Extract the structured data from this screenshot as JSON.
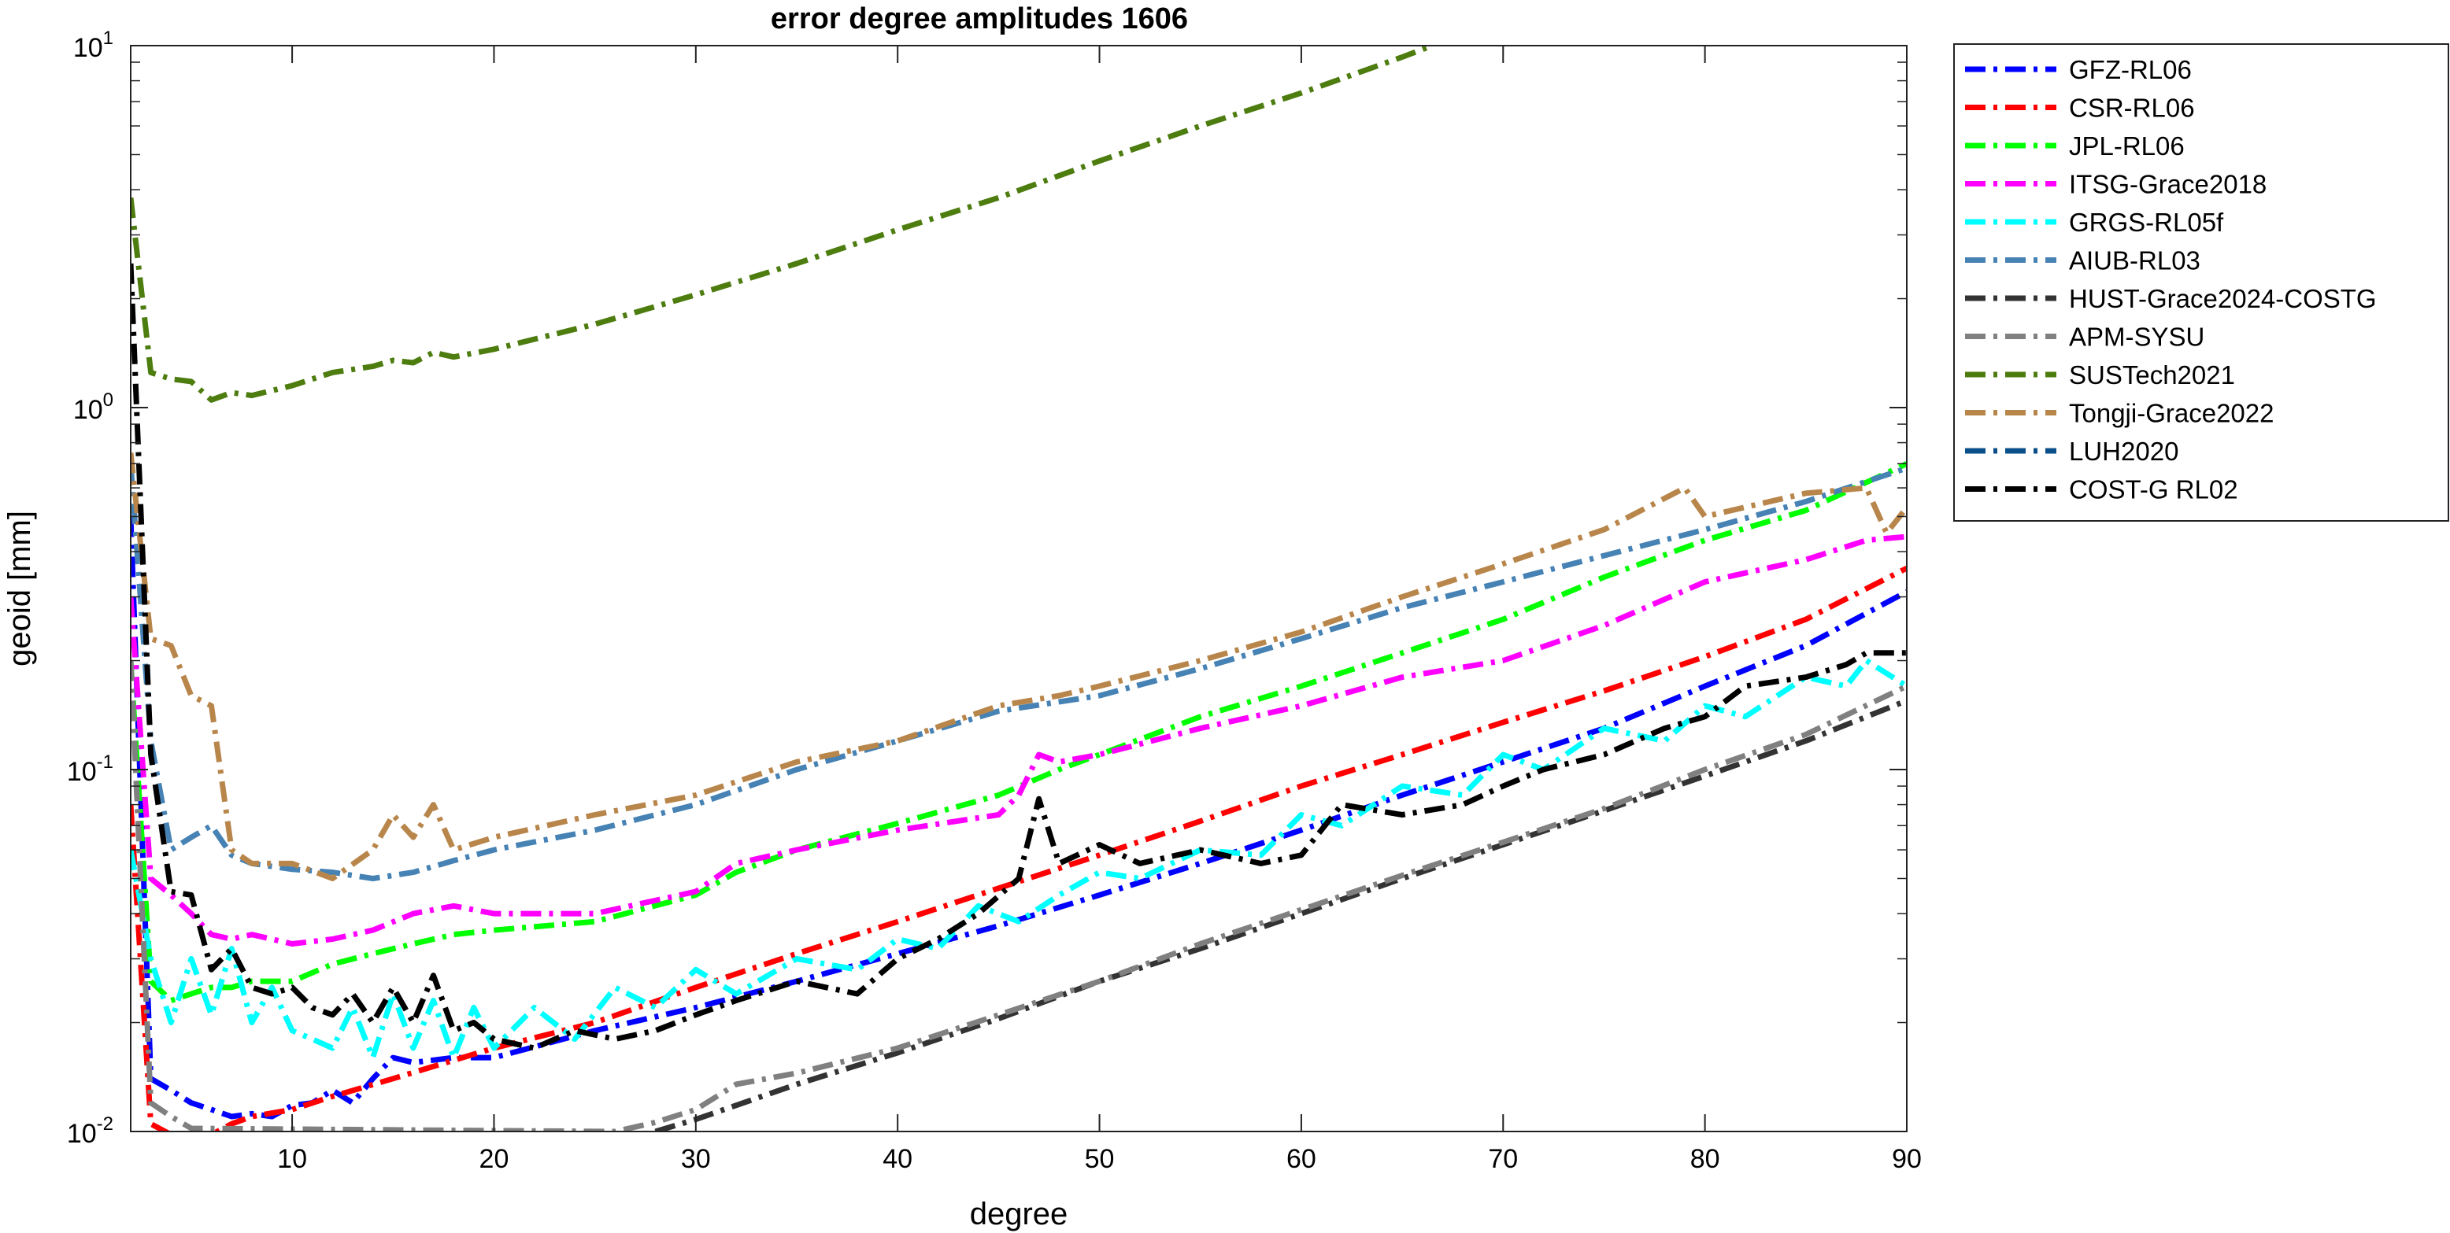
{
  "chart_data": {
    "type": "line",
    "title": "error degree amplitudes 1606",
    "xlabel": "degree",
    "ylabel": "geoid [mm]",
    "xlim": [
      2,
      90
    ],
    "ylim": [
      0.01,
      10
    ],
    "yscale": "log",
    "grid": false,
    "legend_position": "outside-right",
    "x_ticks": [
      10,
      20,
      30,
      40,
      50,
      60,
      70,
      80,
      90
    ],
    "y_major_ticks": [
      {
        "value": 0.01,
        "base": "10",
        "exp": "-2"
      },
      {
        "value": 0.1,
        "base": "10",
        "exp": "-1"
      },
      {
        "value": 1,
        "base": "10",
        "exp": "0"
      },
      {
        "value": 10,
        "base": "10",
        "exp": "1"
      }
    ],
    "series": [
      {
        "name": "GFZ-RL06",
        "color": "#0000ff",
        "dash": "dashdot",
        "x": [
          2,
          3,
          4,
          5,
          6,
          7,
          8,
          9,
          10,
          11,
          12,
          13,
          14,
          15,
          16,
          18,
          20,
          25,
          30,
          35,
          40,
          45,
          50,
          55,
          60,
          65,
          70,
          75,
          80,
          85,
          90
        ],
        "y": [
          0.5,
          0.014,
          0.013,
          0.012,
          0.0115,
          0.011,
          0.0112,
          0.011,
          0.0118,
          0.012,
          0.013,
          0.012,
          0.014,
          0.016,
          0.0155,
          0.016,
          0.016,
          0.019,
          0.022,
          0.026,
          0.031,
          0.037,
          0.045,
          0.055,
          0.068,
          0.085,
          0.105,
          0.13,
          0.17,
          0.22,
          0.31
        ]
      },
      {
        "name": "CSR-RL06",
        "color": "#ff0000",
        "dash": "dashdot",
        "x": [
          2,
          3,
          4,
          5,
          6,
          7,
          8,
          10,
          12,
          15,
          20,
          25,
          30,
          35,
          40,
          45,
          50,
          55,
          60,
          65,
          70,
          75,
          80,
          85,
          90
        ],
        "y": [
          0.08,
          0.0105,
          0.0098,
          0.0095,
          0.0098,
          0.0105,
          0.011,
          0.0115,
          0.0125,
          0.014,
          0.017,
          0.02,
          0.025,
          0.031,
          0.038,
          0.047,
          0.058,
          0.072,
          0.09,
          0.11,
          0.135,
          0.165,
          0.205,
          0.26,
          0.36
        ]
      },
      {
        "name": "JPL-RL06",
        "color": "#00ff00",
        "dash": "dashdot",
        "x": [
          2,
          3,
          4,
          5,
          6,
          7,
          8,
          10,
          12,
          14,
          16,
          18,
          20,
          25,
          30,
          32,
          35,
          40,
          45,
          48,
          50,
          55,
          60,
          65,
          70,
          75,
          80,
          85,
          90
        ],
        "y": [
          0.2,
          0.026,
          0.023,
          0.024,
          0.025,
          0.025,
          0.026,
          0.026,
          0.029,
          0.031,
          0.033,
          0.035,
          0.036,
          0.038,
          0.045,
          0.052,
          0.06,
          0.071,
          0.085,
          0.1,
          0.11,
          0.14,
          0.17,
          0.21,
          0.26,
          0.34,
          0.43,
          0.52,
          0.7
        ]
      },
      {
        "name": "ITSG-Grace2018",
        "color": "#ff00ff",
        "dash": "dashdot",
        "x": [
          2,
          3,
          4,
          5,
          6,
          7,
          8,
          10,
          12,
          14,
          16,
          18,
          20,
          25,
          30,
          32,
          35,
          40,
          45,
          46,
          47,
          48,
          50,
          55,
          60,
          65,
          70,
          75,
          80,
          85,
          88,
          90
        ],
        "y": [
          0.3,
          0.05,
          0.045,
          0.04,
          0.035,
          0.034,
          0.035,
          0.033,
          0.034,
          0.036,
          0.04,
          0.042,
          0.04,
          0.04,
          0.046,
          0.055,
          0.06,
          0.068,
          0.075,
          0.085,
          0.11,
          0.105,
          0.11,
          0.13,
          0.15,
          0.18,
          0.2,
          0.25,
          0.33,
          0.38,
          0.43,
          0.44
        ]
      },
      {
        "name": "GRGS-RL05f",
        "color": "#00ffff",
        "dash": "dashdot",
        "x": [
          2,
          3,
          4,
          5,
          6,
          7,
          8,
          9,
          10,
          11,
          12,
          13,
          14,
          15,
          16,
          17,
          18,
          19,
          20,
          22,
          24,
          26,
          28,
          30,
          32,
          35,
          38,
          40,
          42,
          44,
          46,
          48,
          50,
          52,
          55,
          58,
          60,
          62,
          65,
          68,
          70,
          72,
          75,
          78,
          80,
          82,
          85,
          87,
          88,
          90
        ],
        "y": [
          0.06,
          0.03,
          0.02,
          0.03,
          0.021,
          0.032,
          0.02,
          0.025,
          0.019,
          0.018,
          0.017,
          0.022,
          0.016,
          0.024,
          0.017,
          0.023,
          0.016,
          0.022,
          0.017,
          0.022,
          0.018,
          0.025,
          0.022,
          0.028,
          0.024,
          0.03,
          0.028,
          0.034,
          0.032,
          0.042,
          0.038,
          0.045,
          0.052,
          0.05,
          0.06,
          0.058,
          0.075,
          0.07,
          0.09,
          0.085,
          0.11,
          0.1,
          0.13,
          0.12,
          0.15,
          0.14,
          0.18,
          0.17,
          0.2,
          0.17
        ]
      },
      {
        "name": "AIUB-RL03",
        "color": "#4682b4",
        "dash": "dashdot",
        "x": [
          2,
          3,
          4,
          5,
          6,
          7,
          8,
          10,
          12,
          14,
          16,
          18,
          20,
          25,
          30,
          35,
          40,
          45,
          50,
          55,
          60,
          65,
          70,
          75,
          80,
          85,
          90
        ],
        "y": [
          0.7,
          0.12,
          0.06,
          0.065,
          0.07,
          0.058,
          0.055,
          0.053,
          0.052,
          0.05,
          0.052,
          0.056,
          0.06,
          0.068,
          0.08,
          0.1,
          0.12,
          0.145,
          0.16,
          0.19,
          0.23,
          0.28,
          0.33,
          0.39,
          0.46,
          0.55,
          0.68
        ]
      },
      {
        "name": "HUST-Grace2024-COSTG",
        "color": "#333333",
        "dash": "dashdot",
        "x": [
          28,
          30,
          35,
          40,
          45,
          50,
          55,
          60,
          65,
          70,
          75,
          80,
          85,
          90
        ],
        "y": [
          0.01,
          0.0108,
          0.0135,
          0.0165,
          0.0205,
          0.026,
          0.032,
          0.04,
          0.05,
          0.062,
          0.077,
          0.096,
          0.12,
          0.155
        ]
      },
      {
        "name": "APM-SYSU",
        "color": "#808080",
        "dash": "dashdot",
        "x": [
          2,
          3,
          4,
          5,
          26,
          28,
          30,
          32,
          35,
          40,
          45,
          50,
          55,
          60,
          65,
          70,
          75,
          80,
          85,
          90
        ],
        "y": [
          0.2,
          0.012,
          0.011,
          0.0102,
          0.01,
          0.0106,
          0.0115,
          0.0135,
          0.0145,
          0.017,
          0.021,
          0.026,
          0.033,
          0.041,
          0.051,
          0.063,
          0.078,
          0.1,
          0.125,
          0.17
        ]
      },
      {
        "name": "SUSTech2021",
        "color": "#4d7c0f",
        "dash": "dashdot",
        "x": [
          2,
          3,
          4,
          5,
          6,
          7,
          8,
          10,
          12,
          14,
          15,
          16,
          17,
          18,
          20,
          25,
          30,
          35,
          40,
          45,
          50,
          55,
          60,
          65,
          66.5
        ],
        "y": [
          3.8,
          1.25,
          1.2,
          1.18,
          1.05,
          1.1,
          1.08,
          1.15,
          1.25,
          1.3,
          1.35,
          1.33,
          1.42,
          1.38,
          1.45,
          1.7,
          2.05,
          2.5,
          3.1,
          3.8,
          4.8,
          6.0,
          7.4,
          9.3,
          10
        ]
      },
      {
        "name": "Tongji-Grace2022",
        "color": "#b8864b",
        "dash": "dashdot",
        "x": [
          2,
          3,
          4,
          5,
          6,
          7,
          8,
          10,
          12,
          14,
          15,
          16,
          17,
          18,
          20,
          25,
          30,
          35,
          40,
          45,
          48,
          50,
          55,
          60,
          65,
          70,
          75,
          79,
          80,
          85,
          88,
          89,
          90
        ],
        "y": [
          0.75,
          0.23,
          0.22,
          0.16,
          0.15,
          0.06,
          0.055,
          0.055,
          0.05,
          0.06,
          0.075,
          0.065,
          0.08,
          0.06,
          0.065,
          0.075,
          0.085,
          0.105,
          0.12,
          0.15,
          0.16,
          0.17,
          0.2,
          0.24,
          0.3,
          0.37,
          0.46,
          0.6,
          0.5,
          0.58,
          0.6,
          0.45,
          0.53
        ]
      },
      {
        "name": "LUH2020",
        "color": "#0b4f8a",
        "dash": "dashdot",
        "x": [],
        "y": []
      },
      {
        "name": "COST-G RL02",
        "color": "#000000",
        "dash": "dashdot",
        "x": [
          2,
          3,
          4,
          5,
          6,
          7,
          8,
          9,
          10,
          11,
          12,
          13,
          14,
          15,
          16,
          17,
          18,
          19,
          20,
          22,
          24,
          26,
          28,
          30,
          32,
          35,
          38,
          40,
          42,
          44,
          46,
          47,
          48,
          50,
          52,
          55,
          58,
          60,
          62,
          65,
          68,
          70,
          72,
          75,
          78,
          80,
          82,
          85,
          87,
          88,
          90
        ],
        "y": [
          2.5,
          0.11,
          0.046,
          0.045,
          0.028,
          0.032,
          0.025,
          0.024,
          0.025,
          0.022,
          0.021,
          0.024,
          0.02,
          0.025,
          0.02,
          0.027,
          0.019,
          0.02,
          0.018,
          0.017,
          0.019,
          0.018,
          0.019,
          0.021,
          0.023,
          0.026,
          0.024,
          0.03,
          0.034,
          0.04,
          0.05,
          0.083,
          0.055,
          0.062,
          0.055,
          0.06,
          0.055,
          0.058,
          0.08,
          0.075,
          0.08,
          0.09,
          0.1,
          0.11,
          0.13,
          0.14,
          0.17,
          0.18,
          0.195,
          0.21,
          0.21
        ]
      }
    ]
  }
}
